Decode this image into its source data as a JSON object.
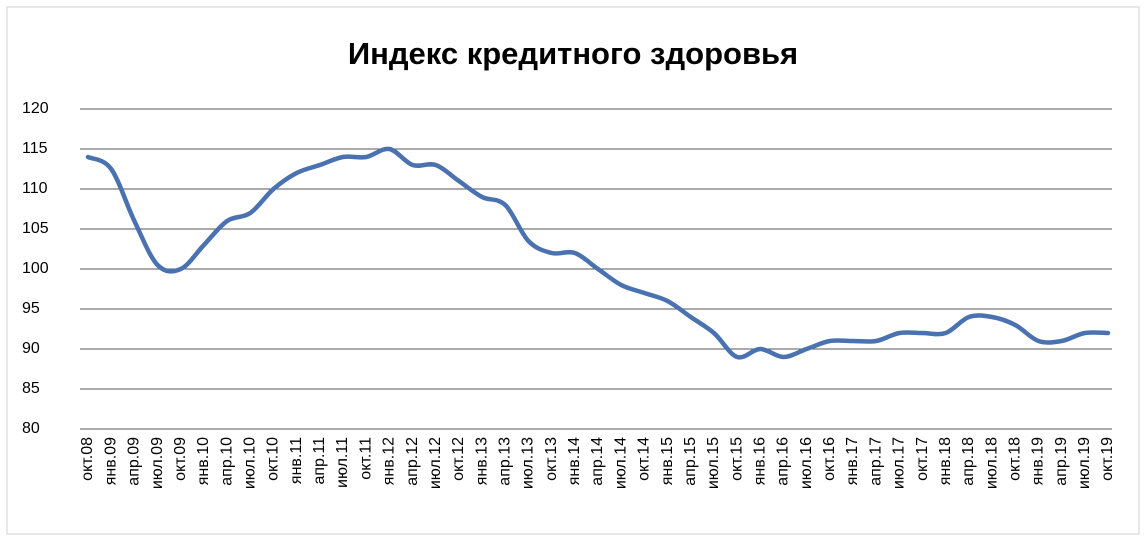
{
  "chart_data": {
    "type": "line",
    "title": "Индекс кредитного здоровья",
    "categories": [
      "окт.08",
      "янв.09",
      "апр.09",
      "июл.09",
      "окт.09",
      "янв.10",
      "апр.10",
      "июл.10",
      "окт.10",
      "янв.11",
      "апр.11",
      "июл.11",
      "окт.11",
      "янв.12",
      "апр.12",
      "июл.12",
      "окт.12",
      "янв.13",
      "апр.13",
      "июл.13",
      "окт.13",
      "янв.14",
      "апр.14",
      "июл.14",
      "окт.14",
      "янв.15",
      "апр.15",
      "июл.15",
      "окт.15",
      "янв.16",
      "апр.16",
      "июл.16",
      "окт.16",
      "янв.17",
      "апр.17",
      "июл.17",
      "окт.17",
      "янв.18",
      "апр.18",
      "июл.18",
      "окт.18",
      "янв.19",
      "апр.19",
      "июл.19",
      "окт.19"
    ],
    "values": [
      114,
      112.5,
      106,
      100.5,
      100,
      103,
      106,
      107,
      110,
      112,
      113,
      114,
      114,
      115,
      113,
      113,
      111,
      109,
      108,
      103.5,
      102,
      102,
      100,
      98,
      97,
      96,
      94,
      92,
      89,
      90,
      89,
      90,
      91,
      91,
      91,
      92,
      92,
      92,
      94,
      94,
      93,
      91,
      91,
      92,
      92
    ],
    "color": "#4a72b0",
    "ylim": [
      80,
      120
    ],
    "yticks": [
      80,
      85,
      90,
      95,
      100,
      105,
      110,
      115,
      120
    ],
    "grid": true
  }
}
